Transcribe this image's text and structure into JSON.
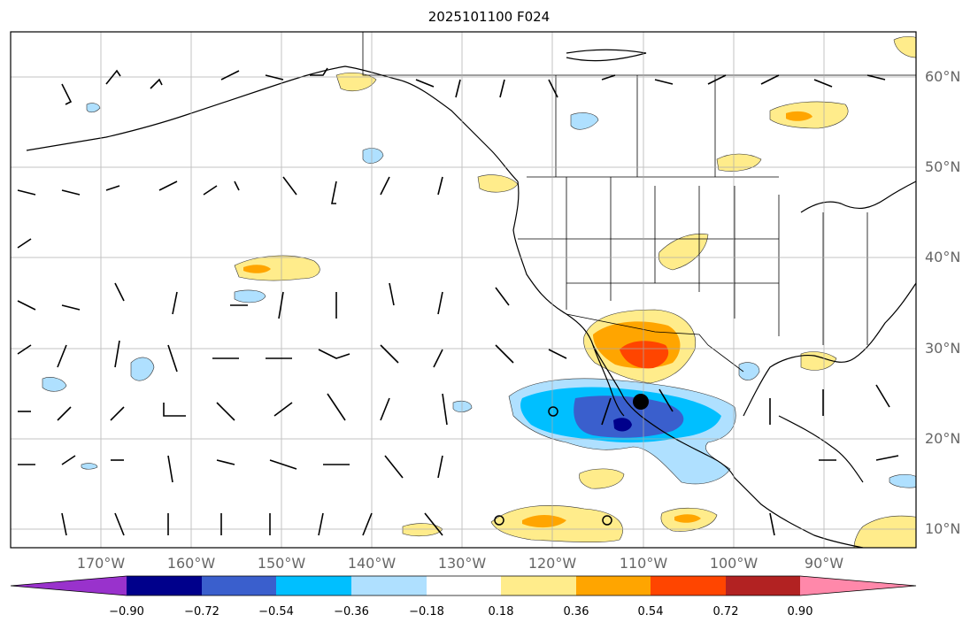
{
  "title": "2025101100 F024",
  "map": {
    "projection": "PlateCarree",
    "extent": {
      "lon_min": -180,
      "lon_max": -80,
      "lat_min": 8,
      "lat_max": 65
    },
    "gridlines": true,
    "lat_labels": [
      "60°N",
      "50°N",
      "40°N",
      "30°N",
      "20°N",
      "10°N"
    ],
    "lon_labels": [
      "170°W",
      "160°W",
      "150°W",
      "140°W",
      "130°W",
      "120°W",
      "110°W",
      "100°W",
      "90°W"
    ],
    "markers": [
      {
        "type": "filled-circle",
        "lon": -110.5,
        "lat": 24
      },
      {
        "type": "open-circle",
        "lon": -121,
        "lat": 23
      },
      {
        "type": "open-circle",
        "lon": -126,
        "lat": 11
      },
      {
        "type": "open-circle",
        "lon": -114,
        "lat": 11
      }
    ]
  },
  "colorbar": {
    "ticks": [
      "−0.90",
      "−0.72",
      "−0.54",
      "−0.36",
      "−0.18",
      "0.18",
      "0.36",
      "0.54",
      "0.72",
      "0.90"
    ],
    "colors": [
      "#9932cc",
      "#00008b",
      "#3a5fcd",
      "#00bfff",
      "#afe0ff",
      "#ffffff",
      "#ffec8b",
      "#ffa500",
      "#ff4500",
      "#b22222",
      "#ff88aa"
    ],
    "extend": "both"
  }
}
